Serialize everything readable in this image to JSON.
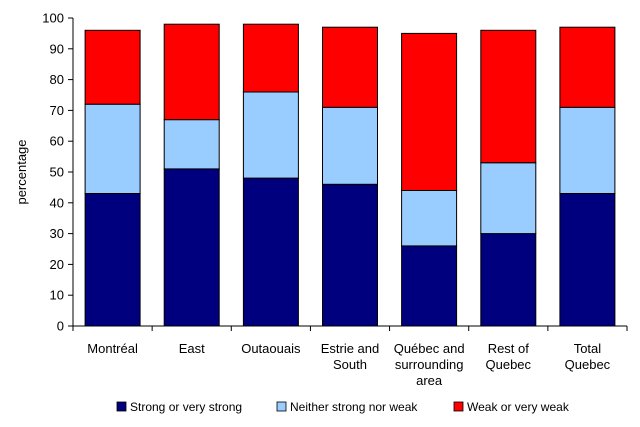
{
  "chart_data": {
    "type": "bar",
    "stacked": true,
    "categories": [
      [
        "Montréal"
      ],
      [
        "East"
      ],
      [
        "Outaouais"
      ],
      [
        "Estrie and",
        "South"
      ],
      [
        "Québec and",
        "surrounding",
        "area"
      ],
      [
        "Rest of",
        "Quebec"
      ],
      [
        "Total",
        "Quebec"
      ]
    ],
    "series": [
      {
        "name": "Strong or very strong",
        "color": "#00007f",
        "values": [
          43,
          51,
          48,
          46,
          26,
          30,
          43
        ]
      },
      {
        "name": "Neither strong nor weak",
        "color": "#99ccff",
        "values": [
          29,
          16,
          28,
          25,
          18,
          23,
          28
        ]
      },
      {
        "name": "Weak or very weak",
        "color": "#ff0000",
        "values": [
          24,
          31,
          22,
          26,
          51,
          43,
          26
        ]
      }
    ],
    "ylabel": "percentage",
    "ylim": [
      0,
      100
    ],
    "yticks": [
      0,
      10,
      20,
      30,
      40,
      50,
      60,
      70,
      80,
      90,
      100
    ],
    "grid": false,
    "legend": "bottom"
  }
}
